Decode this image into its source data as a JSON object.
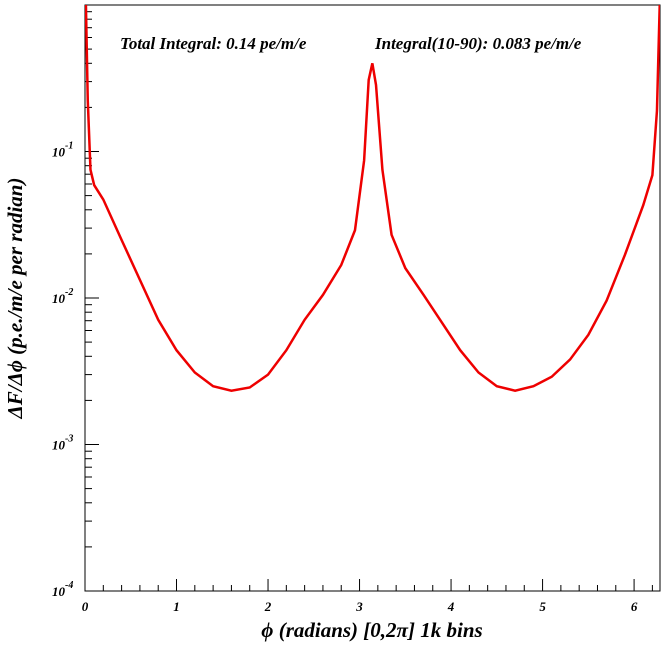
{
  "chart_data": {
    "type": "line",
    "annotations": [
      "Total Integral: 0.14 pe/m/e",
      "Integral(10-90): 0.083 pe/m/e"
    ],
    "x_label": "ϕ (radians) [0,2π] 1k bins",
    "y_label": "ΔF/Δϕ (p.e./m/e per radian)",
    "log_y": true,
    "xlim": [
      0,
      6.2832
    ],
    "ylim": [
      0.0001,
      1
    ],
    "xticks": [
      0,
      1,
      2,
      3,
      4,
      5,
      6
    ],
    "yticks": [
      {
        "value": 0.0001,
        "label": "10-4"
      },
      {
        "value": 0.001,
        "label": "10-3"
      },
      {
        "value": 0.01,
        "label": "10-2"
      },
      {
        "value": 0.1,
        "label": "10-1"
      }
    ],
    "x": [
      0.01,
      0.03,
      0.06,
      0.1,
      0.2,
      0.4,
      0.6,
      0.8,
      1.0,
      1.2,
      1.4,
      1.6,
      1.8,
      2.0,
      2.2,
      2.4,
      2.6,
      2.8,
      2.95,
      3.05,
      3.1,
      3.14,
      3.18,
      3.25,
      3.35,
      3.5,
      3.7,
      3.9,
      4.1,
      4.3,
      4.5,
      4.7,
      4.9,
      5.1,
      5.3,
      5.5,
      5.7,
      5.9,
      6.1,
      6.2,
      6.25,
      6.27,
      6.28
    ],
    "series": [
      {
        "color": "#ee0000",
        "values": [
          1.0,
          0.225,
          0.075,
          0.059,
          0.047,
          0.0249,
          0.0133,
          0.0071,
          0.0044,
          0.0031,
          0.0025,
          0.00233,
          0.00245,
          0.003,
          0.0044,
          0.0071,
          0.0105,
          0.0168,
          0.029,
          0.087,
          0.308,
          0.4,
          0.285,
          0.075,
          0.027,
          0.016,
          0.0105,
          0.0068,
          0.0044,
          0.0031,
          0.0025,
          0.00233,
          0.0025,
          0.0029,
          0.0038,
          0.0056,
          0.0096,
          0.0197,
          0.043,
          0.069,
          0.19,
          0.58,
          1.0
        ]
      }
    ]
  }
}
